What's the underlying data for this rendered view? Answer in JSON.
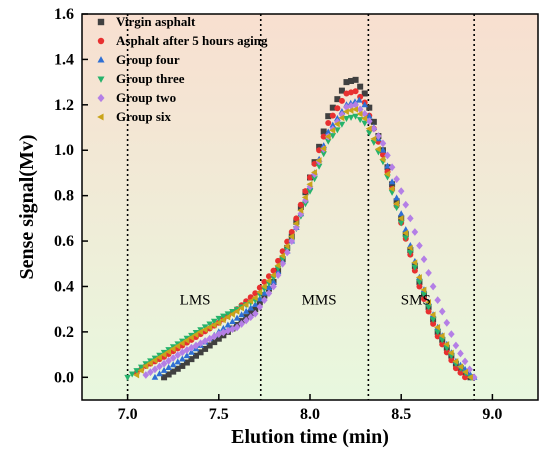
{
  "chart_data": {
    "type": "scatter",
    "xlabel": "Elution time (min)",
    "ylabel": "Sense signal(Mv)",
    "xlim": [
      6.75,
      9.25
    ],
    "ylim": [
      -0.1,
      1.6
    ],
    "xticks": [
      "7.0",
      "7.5",
      "8.0",
      "8.5",
      "9.0"
    ],
    "yticks": [
      "0.0",
      "0.2",
      "0.4",
      "0.6",
      "0.8",
      "1.0",
      "1.2",
      "1.4",
      "1.6"
    ],
    "vlines": [
      7.0,
      7.73,
      8.32,
      8.9
    ],
    "regions": [
      {
        "label": "LMS",
        "x": 7.37,
        "y": 0.32
      },
      {
        "label": "MMS",
        "x": 8.05,
        "y": 0.32
      },
      {
        "label": "SMS",
        "x": 8.58,
        "y": 0.32
      }
    ],
    "background_gradient": [
      "#f8dfd0",
      "#e8f8de"
    ],
    "series": [
      {
        "name": "Virgin asphalt",
        "marker": "square",
        "color": "#404040",
        "x": [
          7.2,
          7.3,
          7.4,
          7.5,
          7.6,
          7.7,
          7.8,
          7.9,
          8.0,
          8.1,
          8.2,
          8.25,
          8.3,
          8.4,
          8.5,
          8.6,
          8.7,
          8.8,
          8.88
        ],
        "y": [
          0.0,
          0.05,
          0.11,
          0.17,
          0.23,
          0.3,
          0.42,
          0.62,
          0.88,
          1.15,
          1.3,
          1.31,
          1.25,
          1.0,
          0.7,
          0.42,
          0.2,
          0.06,
          0.0
        ]
      },
      {
        "name": "Asphalt after 5 hours aging",
        "marker": "circle",
        "color": "#e83030",
        "x": [
          7.05,
          7.1,
          7.2,
          7.3,
          7.4,
          7.5,
          7.6,
          7.7,
          7.8,
          7.9,
          8.0,
          8.1,
          8.2,
          8.25,
          8.3,
          8.4,
          8.5,
          8.6,
          8.7,
          8.8,
          8.85
        ],
        "y": [
          0.02,
          0.05,
          0.09,
          0.14,
          0.19,
          0.24,
          0.3,
          0.37,
          0.47,
          0.64,
          0.88,
          1.12,
          1.25,
          1.26,
          1.21,
          0.98,
          0.68,
          0.4,
          0.18,
          0.04,
          0.0
        ]
      },
      {
        "name": "Group four",
        "marker": "triangle-up",
        "color": "#2f6fd4",
        "x": [
          7.15,
          7.2,
          7.3,
          7.4,
          7.5,
          7.6,
          7.7,
          7.8,
          7.9,
          8.0,
          8.1,
          8.2,
          8.27,
          8.3,
          8.4,
          8.5,
          8.6,
          8.7,
          8.8,
          8.9
        ],
        "y": [
          0.0,
          0.03,
          0.08,
          0.14,
          0.2,
          0.26,
          0.32,
          0.42,
          0.6,
          0.84,
          1.08,
          1.2,
          1.22,
          1.2,
          1.0,
          0.72,
          0.44,
          0.22,
          0.07,
          0.0
        ]
      },
      {
        "name": "Group three",
        "marker": "triangle-down",
        "color": "#26b36b",
        "x": [
          7.0,
          7.1,
          7.2,
          7.3,
          7.4,
          7.5,
          7.6,
          7.7,
          7.8,
          7.9,
          8.0,
          8.1,
          8.2,
          8.25,
          8.3,
          8.4,
          8.5,
          8.6,
          8.7,
          8.8,
          8.88
        ],
        "y": [
          0.0,
          0.06,
          0.11,
          0.16,
          0.21,
          0.26,
          0.3,
          0.34,
          0.44,
          0.6,
          0.82,
          1.04,
          1.14,
          1.15,
          1.12,
          0.95,
          0.68,
          0.42,
          0.2,
          0.06,
          0.0
        ]
      },
      {
        "name": "Group two",
        "marker": "diamond",
        "color": "#b47fe6",
        "x": [
          7.1,
          7.2,
          7.3,
          7.4,
          7.5,
          7.6,
          7.7,
          7.8,
          7.9,
          8.0,
          8.1,
          8.2,
          8.25,
          8.3,
          8.4,
          8.5,
          8.6,
          8.7,
          8.8,
          8.9
        ],
        "y": [
          0.01,
          0.06,
          0.11,
          0.15,
          0.19,
          0.22,
          0.28,
          0.4,
          0.6,
          0.84,
          1.06,
          1.19,
          1.2,
          1.16,
          1.03,
          0.82,
          0.58,
          0.34,
          0.14,
          0.0
        ]
      },
      {
        "name": "Group six",
        "marker": "triangle-left",
        "color": "#c9a41a",
        "x": [
          7.05,
          7.1,
          7.2,
          7.3,
          7.4,
          7.5,
          7.6,
          7.7,
          7.8,
          7.9,
          8.0,
          8.1,
          8.2,
          8.25,
          8.3,
          8.4,
          8.5,
          8.6,
          8.7,
          8.8,
          8.88
        ],
        "y": [
          0.01,
          0.05,
          0.1,
          0.15,
          0.2,
          0.24,
          0.29,
          0.35,
          0.45,
          0.62,
          0.85,
          1.06,
          1.17,
          1.18,
          1.14,
          0.96,
          0.7,
          0.44,
          0.22,
          0.07,
          0.0
        ]
      }
    ]
  }
}
